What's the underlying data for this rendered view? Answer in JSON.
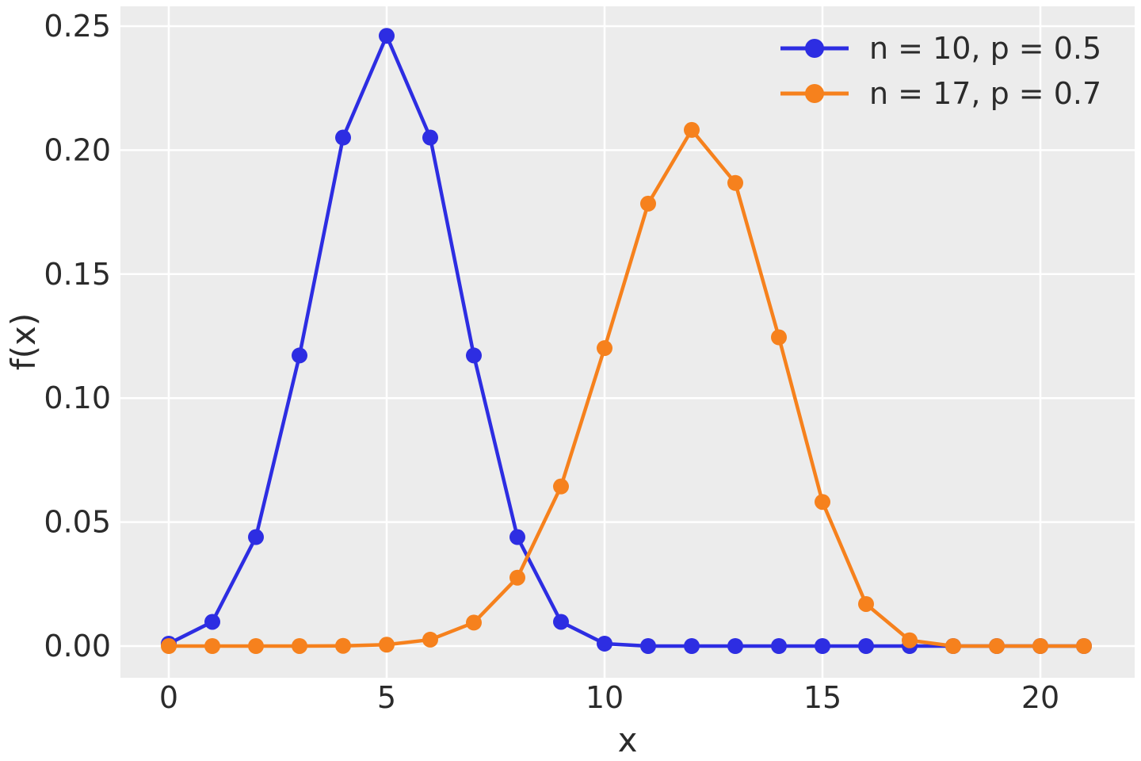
{
  "figure": {
    "background": "#ffffff",
    "plot_background": "#ececec",
    "grid_color": "#ffffff",
    "text_color": "#2b2b2b"
  },
  "chart_data": {
    "type": "line",
    "title": "",
    "xlabel": "x",
    "ylabel": "f(x)",
    "grid": true,
    "legend_position": "upper right",
    "x": [
      0,
      1,
      2,
      3,
      4,
      5,
      6,
      7,
      8,
      9,
      10,
      11,
      12,
      13,
      14,
      15,
      16,
      17,
      18,
      19,
      20,
      21
    ],
    "xticks": [
      0,
      5,
      10,
      15,
      20
    ],
    "yticks": [
      {
        "value": 0.0,
        "label": "0.00"
      },
      {
        "value": 0.05,
        "label": "0.05"
      },
      {
        "value": 0.1,
        "label": "0.10"
      },
      {
        "value": 0.15,
        "label": "0.15"
      },
      {
        "value": 0.2,
        "label": "0.20"
      },
      {
        "value": 0.25,
        "label": "0.25"
      }
    ],
    "ylim": [
      -0.0128,
      0.258
    ],
    "xlim": [
      -1.1,
      22.1
    ],
    "series": [
      {
        "name": "n = 10, p = 0.5",
        "color": "#2d2de2",
        "marker": "circle",
        "values": [
          0.000977,
          0.009766,
          0.043945,
          0.117188,
          0.205078,
          0.246094,
          0.205078,
          0.117188,
          0.043945,
          0.009766,
          0.000977,
          0,
          0,
          0,
          0,
          0,
          0,
          0,
          0,
          0,
          0,
          0
        ]
      },
      {
        "name": "n = 17, p = 0.7",
        "color": "#f6811d",
        "marker": "circle",
        "values": [
          0,
          1e-07,
          1e-06,
          1.1e-05,
          9.1e-05,
          0.000553,
          0.002579,
          0.009457,
          0.027584,
          0.064363,
          0.120145,
          0.178415,
          0.208151,
          0.186782,
          0.124522,
          0.058111,
          0.016949,
          0.002326,
          0,
          0,
          0,
          0
        ]
      }
    ]
  }
}
